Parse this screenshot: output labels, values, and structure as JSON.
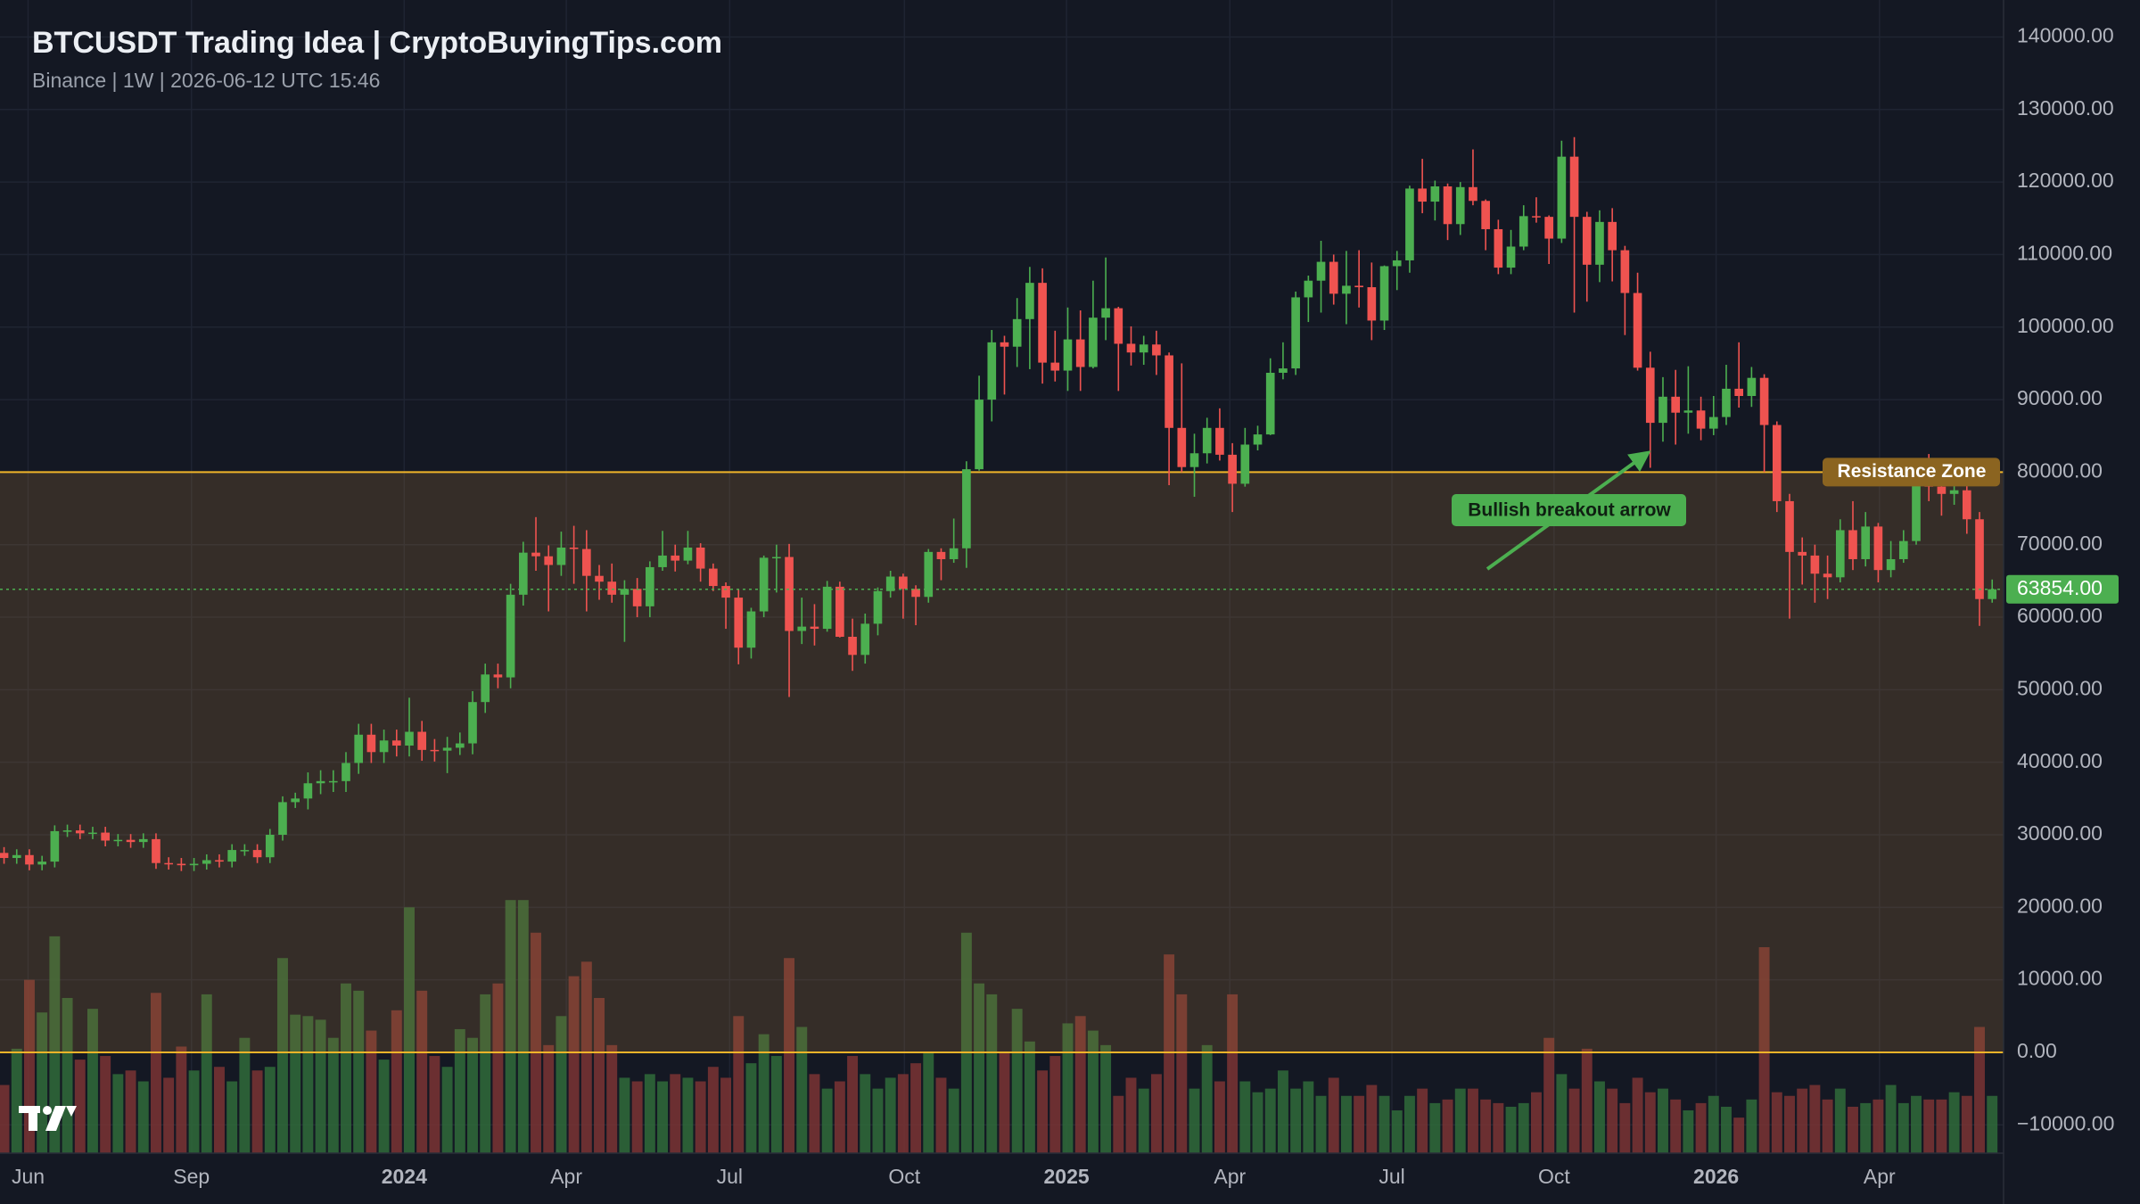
{
  "chart_data": {
    "type": "candlestick",
    "title": "BTCUSDT Trading Idea | CryptoBuyingTips.com",
    "subtitle": "Binance | 1W | 2026-06-12 UTC 15:46",
    "open": [
      27500,
      26800,
      27200,
      25900,
      26300,
      30500,
      30600,
      30200,
      30300,
      29200,
      29300,
      29000,
      29400,
      26100,
      26000,
      25800,
      26000,
      26500,
      26300,
      27900,
      27900,
      26900,
      30000,
      34500,
      35000,
      37100,
      37400,
      37400,
      39900,
      43800,
      41400,
      43000,
      42300,
      44200,
      41700,
      41600,
      42000,
      42600,
      48300,
      52100,
      51700,
      63100,
      68900,
      68400,
      67200,
      69600,
      69400,
      65700,
      64900,
      63100,
      63900,
      61500,
      66900,
      68500,
      67800,
      69600,
      66700,
      64300,
      62700,
      55800,
      60800,
      68200,
      68300,
      58100,
      58700,
      58400,
      64200,
      57300,
      54800,
      59100,
      63600,
      65600,
      63900,
      62800,
      69000,
      68000,
      69500,
      80400,
      90000,
      97900,
      97300,
      101100,
      106100,
      95100,
      94000,
      98300,
      94500,
      101300,
      102600,
      97700,
      96500,
      97600,
      96100,
      86100,
      80700,
      82600,
      86100,
      82400,
      78400,
      83800,
      85200,
      93700,
      94300,
      104100,
      106400,
      109000,
      104600,
      105700,
      105500,
      100900,
      108400,
      109200,
      119100,
      117300,
      119400,
      114200,
      119300,
      117400,
      113500,
      108200,
      111100,
      115300,
      115200,
      112200,
      123500,
      115200,
      108600,
      114500,
      110600,
      104700,
      94400,
      86800,
      90400,
      88200,
      88500,
      86000,
      87600,
      91500,
      90500,
      93000,
      86500,
      76000,
      69000,
      68500,
      66000,
      65500,
      72000,
      68000,
      72500,
      66500,
      68000,
      70500,
      78500,
      78000,
      77000,
      77500,
      73500,
      62500
    ],
    "high": [
      28300,
      28000,
      28000,
      27100,
      31300,
      31400,
      31400,
      31100,
      31100,
      30100,
      30100,
      30200,
      30200,
      26900,
      26800,
      26800,
      27300,
      27300,
      28700,
      28700,
      28700,
      30800,
      35300,
      35800,
      38600,
      38900,
      38900,
      41400,
      45300,
      45300,
      44500,
      44500,
      48900,
      45700,
      43200,
      43500,
      44100,
      49800,
      53600,
      53600,
      64600,
      70400,
      73800,
      69900,
      71800,
      72600,
      72000,
      67200,
      67400,
      65100,
      65400,
      67700,
      71900,
      70000,
      71900,
      70200,
      67400,
      64800,
      63800,
      61300,
      68500,
      70000,
      70100,
      62700,
      61800,
      65000,
      64900,
      59800,
      60500,
      64100,
      66400,
      66000,
      64400,
      69400,
      69500,
      73600,
      81500,
      93300,
      99600,
      98800,
      104000,
      108300,
      108100,
      99500,
      102700,
      102300,
      106400,
      109600,
      102800,
      100100,
      98800,
      99500,
      96500,
      95000,
      85300,
      87500,
      88800,
      84000,
      86100,
      86400,
      95700,
      97900,
      104900,
      107100,
      111900,
      110000,
      110500,
      110600,
      108900,
      108500,
      110500,
      119500,
      123200,
      120200,
      119800,
      120000,
      124500,
      117600,
      114800,
      113400,
      116800,
      117900,
      115400,
      125700,
      126200,
      115900,
      116100,
      116400,
      111200,
      107500,
      96600,
      93100,
      94100,
      94600,
      90400,
      90500,
      94800,
      97900,
      94500,
      93500,
      87000,
      77000,
      71000,
      70000,
      68500,
      73500,
      76000,
      74500,
      73000,
      70500,
      72000,
      80000,
      82500,
      79000,
      79000,
      78500,
      74500,
      65200
    ],
    "low": [
      26000,
      26000,
      25100,
      25100,
      25500,
      29700,
      29400,
      29400,
      28400,
      28400,
      28200,
      28200,
      25300,
      25200,
      25000,
      25000,
      25200,
      25500,
      25500,
      27100,
      26100,
      26100,
      29200,
      33700,
      33500,
      35600,
      35900,
      35900,
      38400,
      39900,
      39900,
      40800,
      40800,
      40200,
      40100,
      38500,
      41000,
      41100,
      46800,
      50200,
      50200,
      61600,
      66400,
      60800,
      65700,
      64600,
      60800,
      62400,
      62000,
      56600,
      60000,
      60000,
      66400,
      66300,
      67300,
      64900,
      63600,
      58400,
      53500,
      54300,
      60000,
      63400,
      49000,
      56300,
      56100,
      58000,
      57200,
      52600,
      53600,
      57500,
      62700,
      59800,
      58900,
      62000,
      65100,
      67500,
      66800,
      80200,
      87000,
      90700,
      94500,
      94200,
      92200,
      92500,
      91200,
      91200,
      94300,
      98200,
      91200,
      94700,
      94800,
      93400,
      78200,
      80000,
      76600,
      81200,
      81600,
      74500,
      78000,
      83000,
      85100,
      92800,
      93400,
      100700,
      102000,
      103100,
      100400,
      102700,
      98200,
      99600,
      105100,
      107500,
      115700,
      114700,
      112000,
      112700,
      116800,
      110600,
      107300,
      107300,
      110600,
      114400,
      108700,
      111600,
      102000,
      103500,
      106200,
      106300,
      98900,
      94000,
      80600,
      84200,
      83800,
      85300,
      84400,
      85100,
      86500,
      88900,
      89000,
      80000,
      74500,
      59800,
      64500,
      62000,
      62500,
      64800,
      66500,
      67000,
      64800,
      65500,
      67500,
      70000,
      76000,
      74000,
      75500,
      71500,
      58800,
      62000
    ],
    "close": [
      26800,
      27200,
      25900,
      26300,
      30500,
      30600,
      30200,
      30300,
      29200,
      29300,
      29000,
      29400,
      26100,
      26000,
      25800,
      26000,
      26500,
      26300,
      27900,
      27900,
      26900,
      30000,
      34500,
      35000,
      37100,
      37400,
      37400,
      39900,
      43800,
      41400,
      43000,
      42300,
      44200,
      41700,
      41600,
      42000,
      42600,
      48300,
      52100,
      51700,
      63100,
      68900,
      68400,
      67200,
      69600,
      69400,
      65700,
      64900,
      63100,
      63900,
      61500,
      66900,
      68500,
      67800,
      69600,
      66700,
      64300,
      62700,
      55800,
      60800,
      68200,
      68300,
      58100,
      58700,
      58400,
      64200,
      57300,
      54800,
      59100,
      63600,
      65600,
      63900,
      62800,
      69000,
      68000,
      69500,
      80400,
      90000,
      97900,
      97300,
      101100,
      106100,
      95100,
      94000,
      98300,
      94500,
      101300,
      102600,
      97700,
      96500,
      97600,
      96100,
      86100,
      80700,
      82600,
      86100,
      82400,
      78400,
      83800,
      85200,
      93700,
      94300,
      104100,
      106400,
      109000,
      104600,
      105700,
      105500,
      100900,
      108400,
      109200,
      119100,
      117300,
      119400,
      114200,
      119300,
      117400,
      113500,
      108200,
      111100,
      115300,
      115200,
      112200,
      123500,
      115200,
      108600,
      114500,
      110600,
      104700,
      94400,
      86800,
      90400,
      88200,
      88500,
      86000,
      87600,
      91500,
      90500,
      93000,
      86500,
      76000,
      69000,
      68500,
      66000,
      65500,
      72000,
      68000,
      72500,
      66500,
      68000,
      70500,
      78500,
      78000,
      77000,
      77500,
      73500,
      62500,
      63854
    ],
    "volume": [
      -4500,
      500,
      10000,
      5500,
      16000,
      7500,
      -1000,
      6000,
      -500,
      -3000,
      -2500,
      -4000,
      8200,
      -3500,
      800,
      -2500,
      8000,
      -2000,
      -4000,
      2000,
      -2500,
      -2000,
      13000,
      5200,
      5000,
      4500,
      2000,
      9500,
      8500,
      3000,
      -1000,
      5800,
      20000,
      8500,
      -500,
      -2000,
      3200,
      2000,
      8000,
      9500,
      21000,
      21000,
      16500,
      1000,
      5000,
      10500,
      12500,
      7500,
      1000,
      -3500,
      -4000,
      -3000,
      -4000,
      -3000,
      -3500,
      -4000,
      -2000,
      -3500,
      5000,
      -1500,
      2500,
      -500,
      13000,
      3500,
      -3000,
      -5000,
      -4000,
      -500,
      -3000,
      -5000,
      -3500,
      -3000,
      -1500,
      0,
      -3500,
      -5000,
      16500,
      9500,
      8000,
      0,
      6000,
      1500,
      -2500,
      -500,
      4000,
      5000,
      3000,
      1000,
      -6000,
      -3500,
      -5000,
      -3000,
      13500,
      8000,
      -5000,
      1000,
      -4000,
      8000,
      -4000,
      -5500,
      -5000,
      -2500,
      -5000,
      -4000,
      -6000,
      -3500,
      -6000,
      -6000,
      -4500,
      -6000,
      -8000,
      -6000,
      -5000,
      -7000,
      -6500,
      -5000,
      -5000,
      -6500,
      -7000,
      -7500,
      -7000,
      -5500,
      2000,
      -3000,
      -5000,
      500,
      -4000,
      -5000,
      -7000,
      -3500,
      -5500,
      -5000,
      -6500,
      -8000,
      -7000,
      -6000,
      -7500,
      -9000,
      -6500,
      14500,
      -5500,
      -6000,
      -5000,
      -4500,
      -6500,
      -5000,
      -7500,
      -7000,
      -6500,
      -4500,
      -7000,
      -6000,
      -6500,
      -6500,
      -5500,
      -6000,
      3500,
      -6000
    ],
    "up_color": "#4caf50",
    "down_color": "#ef5350",
    "volume_up_color": "#2f6b3a",
    "volume_down_color": "#7a3434",
    "ylim": [
      -13900,
      145100
    ],
    "yticks": [
      {
        "value": -10000,
        "label": "−10000.00"
      },
      {
        "value": 0,
        "label": "0.00"
      },
      {
        "value": 10000,
        "label": "10000.00"
      },
      {
        "value": 20000,
        "label": "20000.00"
      },
      {
        "value": 30000,
        "label": "30000.00"
      },
      {
        "value": 40000,
        "label": "40000.00"
      },
      {
        "value": 50000,
        "label": "50000.00"
      },
      {
        "value": 60000,
        "label": "60000.00"
      },
      {
        "value": 70000,
        "label": "70000.00"
      },
      {
        "value": 80000,
        "label": "80000.00"
      },
      {
        "value": 90000,
        "label": "90000.00"
      },
      {
        "value": 100000,
        "label": "100000.00"
      },
      {
        "value": 110000,
        "label": "110000.00"
      },
      {
        "value": 120000,
        "label": "120000.00"
      },
      {
        "value": 130000,
        "label": "130000.00"
      },
      {
        "value": 140000,
        "label": "140000.00"
      }
    ],
    "xlim": [
      -0.32,
      157.9
    ],
    "xticks": [
      {
        "value": 1.9,
        "label": "Jun"
      },
      {
        "value": 14.8,
        "label": "Sep"
      },
      {
        "value": 31.6,
        "label": "2024"
      },
      {
        "value": 44.4,
        "label": "Apr"
      },
      {
        "value": 57.3,
        "label": "Jul"
      },
      {
        "value": 71.1,
        "label": "Oct"
      },
      {
        "value": 83.9,
        "label": "2025"
      },
      {
        "value": 96.8,
        "label": "Apr"
      },
      {
        "value": 109.6,
        "label": "Jul"
      },
      {
        "value": 122.4,
        "label": "Oct"
      },
      {
        "value": 135.2,
        "label": "2026"
      },
      {
        "value": 148.1,
        "label": "Apr"
      }
    ],
    "grid": true,
    "zone": {
      "label": "Resistance Zone",
      "from": 0,
      "to": 80000,
      "color": "#f0b429"
    },
    "last_price": {
      "value": 63854,
      "label": "63854.00"
    },
    "annotation": "Bullish breakout arrow"
  }
}
